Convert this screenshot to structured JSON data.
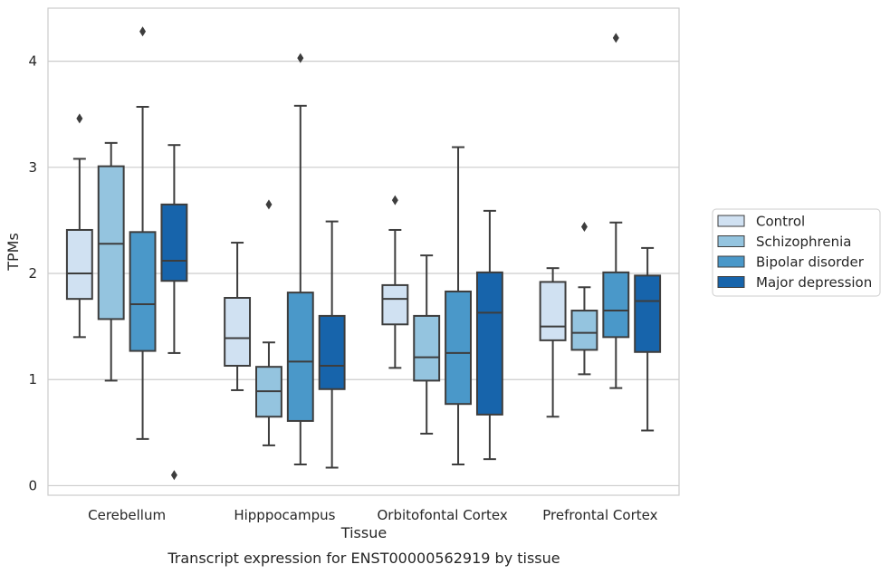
{
  "chart_data": {
    "type": "box",
    "title": "",
    "caption": "Transcript expression for ENST00000562919 by tissue",
    "xlabel": "Tissue",
    "ylabel": "TPMs",
    "ylim": [
      -0.09,
      4.5
    ],
    "yticks": [
      0,
      1,
      2,
      3,
      4
    ],
    "categories": [
      "Cerebellum",
      "Hipppocampus",
      "Orbitofontal Cortex",
      "Prefrontal Cortex"
    ],
    "grid": true,
    "legend_position": "right",
    "series": [
      {
        "name": "Control",
        "color": "#d0e1f2",
        "boxes": [
          {
            "whisker_low": 1.4,
            "q1": 1.76,
            "median": 2.0,
            "q3": 2.41,
            "whisker_high": 3.08,
            "outliers": [
              3.46
            ]
          },
          {
            "whisker_low": 0.9,
            "q1": 1.13,
            "median": 1.39,
            "q3": 1.77,
            "whisker_high": 2.29,
            "outliers": []
          },
          {
            "whisker_low": 1.11,
            "q1": 1.52,
            "median": 1.76,
            "q3": 1.89,
            "whisker_high": 2.41,
            "outliers": [
              2.69
            ]
          },
          {
            "whisker_low": 0.65,
            "q1": 1.37,
            "median": 1.5,
            "q3": 1.92,
            "whisker_high": 2.05,
            "outliers": []
          }
        ]
      },
      {
        "name": "Schizophrenia",
        "color": "#94c4df",
        "boxes": [
          {
            "whisker_low": 0.99,
            "q1": 1.57,
            "median": 2.28,
            "q3": 3.01,
            "whisker_high": 3.23,
            "outliers": []
          },
          {
            "whisker_low": 0.38,
            "q1": 0.65,
            "median": 0.89,
            "q3": 1.12,
            "whisker_high": 1.35,
            "outliers": [
              2.65
            ]
          },
          {
            "whisker_low": 0.49,
            "q1": 0.99,
            "median": 1.21,
            "q3": 1.6,
            "whisker_high": 2.17,
            "outliers": []
          },
          {
            "whisker_low": 1.05,
            "q1": 1.28,
            "median": 1.44,
            "q3": 1.65,
            "whisker_high": 1.87,
            "outliers": [
              2.44
            ]
          }
        ]
      },
      {
        "name": "Bipolar disorder",
        "color": "#4a98c9",
        "boxes": [
          {
            "whisker_low": 0.44,
            "q1": 1.27,
            "median": 1.71,
            "q3": 2.39,
            "whisker_high": 3.57,
            "outliers": [
              4.28
            ]
          },
          {
            "whisker_low": 0.2,
            "q1": 0.61,
            "median": 1.17,
            "q3": 1.82,
            "whisker_high": 3.58,
            "outliers": [
              4.03
            ]
          },
          {
            "whisker_low": 0.2,
            "q1": 0.77,
            "median": 1.25,
            "q3": 1.83,
            "whisker_high": 3.19,
            "outliers": []
          },
          {
            "whisker_low": 0.92,
            "q1": 1.4,
            "median": 1.65,
            "q3": 2.01,
            "whisker_high": 2.48,
            "outliers": [
              4.22
            ]
          }
        ]
      },
      {
        "name": "Major depression",
        "color": "#1764ab",
        "boxes": [
          {
            "whisker_low": 1.25,
            "q1": 1.93,
            "median": 2.12,
            "q3": 2.65,
            "whisker_high": 3.21,
            "outliers": [
              0.1
            ]
          },
          {
            "whisker_low": 0.17,
            "q1": 0.91,
            "median": 1.13,
            "q3": 1.6,
            "whisker_high": 2.49,
            "outliers": []
          },
          {
            "whisker_low": 0.25,
            "q1": 0.67,
            "median": 1.63,
            "q3": 2.01,
            "whisker_high": 2.59,
            "outliers": []
          },
          {
            "whisker_low": 0.52,
            "q1": 1.26,
            "median": 1.74,
            "q3": 1.98,
            "whisker_high": 2.24,
            "outliers": []
          }
        ]
      }
    ]
  }
}
